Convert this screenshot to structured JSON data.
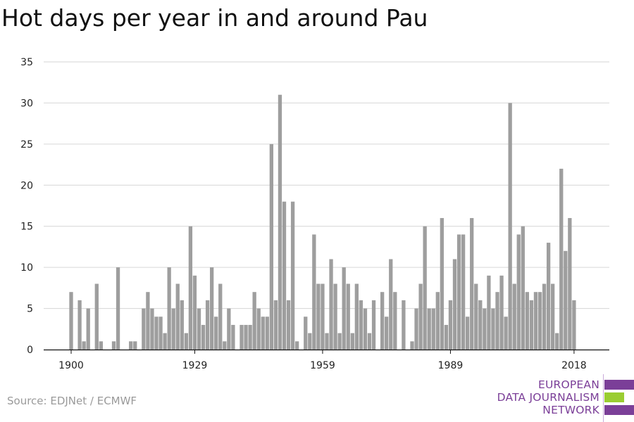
{
  "title": "Hot days per year in and around Pau",
  "source": "Source: EDJNet / ECMWF",
  "logo": {
    "lines": [
      "EUROPEAN",
      "DATA JOURNALISM",
      "NETWORK"
    ],
    "colors": [
      "#7b3f98",
      "#9acd32",
      "#7b3f98"
    ]
  },
  "chart_data": {
    "type": "bar",
    "title": "Hot days per year in and around Pau",
    "xlabel": "",
    "ylabel": "",
    "x_start": 1900,
    "x_end": 2020,
    "x_ticks": [
      1900,
      1929,
      1959,
      1989,
      2018
    ],
    "y_ticks": [
      0,
      5,
      10,
      15,
      20,
      25,
      30,
      35
    ],
    "ylim": [
      0,
      35
    ],
    "grid": true,
    "bar_color": "#9e9e9e",
    "values": [
      7,
      0,
      6,
      1,
      5,
      0,
      8,
      1,
      0,
      0,
      1,
      10,
      0,
      0,
      1,
      1,
      0,
      5,
      7,
      5,
      4,
      4,
      2,
      10,
      5,
      8,
      6,
      2,
      15,
      9,
      5,
      3,
      6,
      10,
      4,
      8,
      1,
      5,
      3,
      0,
      3,
      3,
      3,
      7,
      5,
      4,
      4,
      25,
      6,
      31,
      18,
      6,
      18,
      1,
      0,
      4,
      2,
      14,
      8,
      8,
      2,
      11,
      8,
      2,
      10,
      8,
      2,
      8,
      6,
      5,
      2,
      6,
      0,
      7,
      4,
      11,
      7,
      0,
      6,
      0,
      1,
      5,
      8,
      15,
      5,
      5,
      7,
      16,
      3,
      6,
      11,
      14,
      14,
      4,
      16,
      8,
      6,
      5,
      9,
      5,
      7,
      9,
      4,
      30,
      8,
      14,
      15,
      7,
      6,
      7,
      7,
      8,
      13,
      8,
      2,
      22,
      12,
      16,
      6,
      0
    ]
  }
}
